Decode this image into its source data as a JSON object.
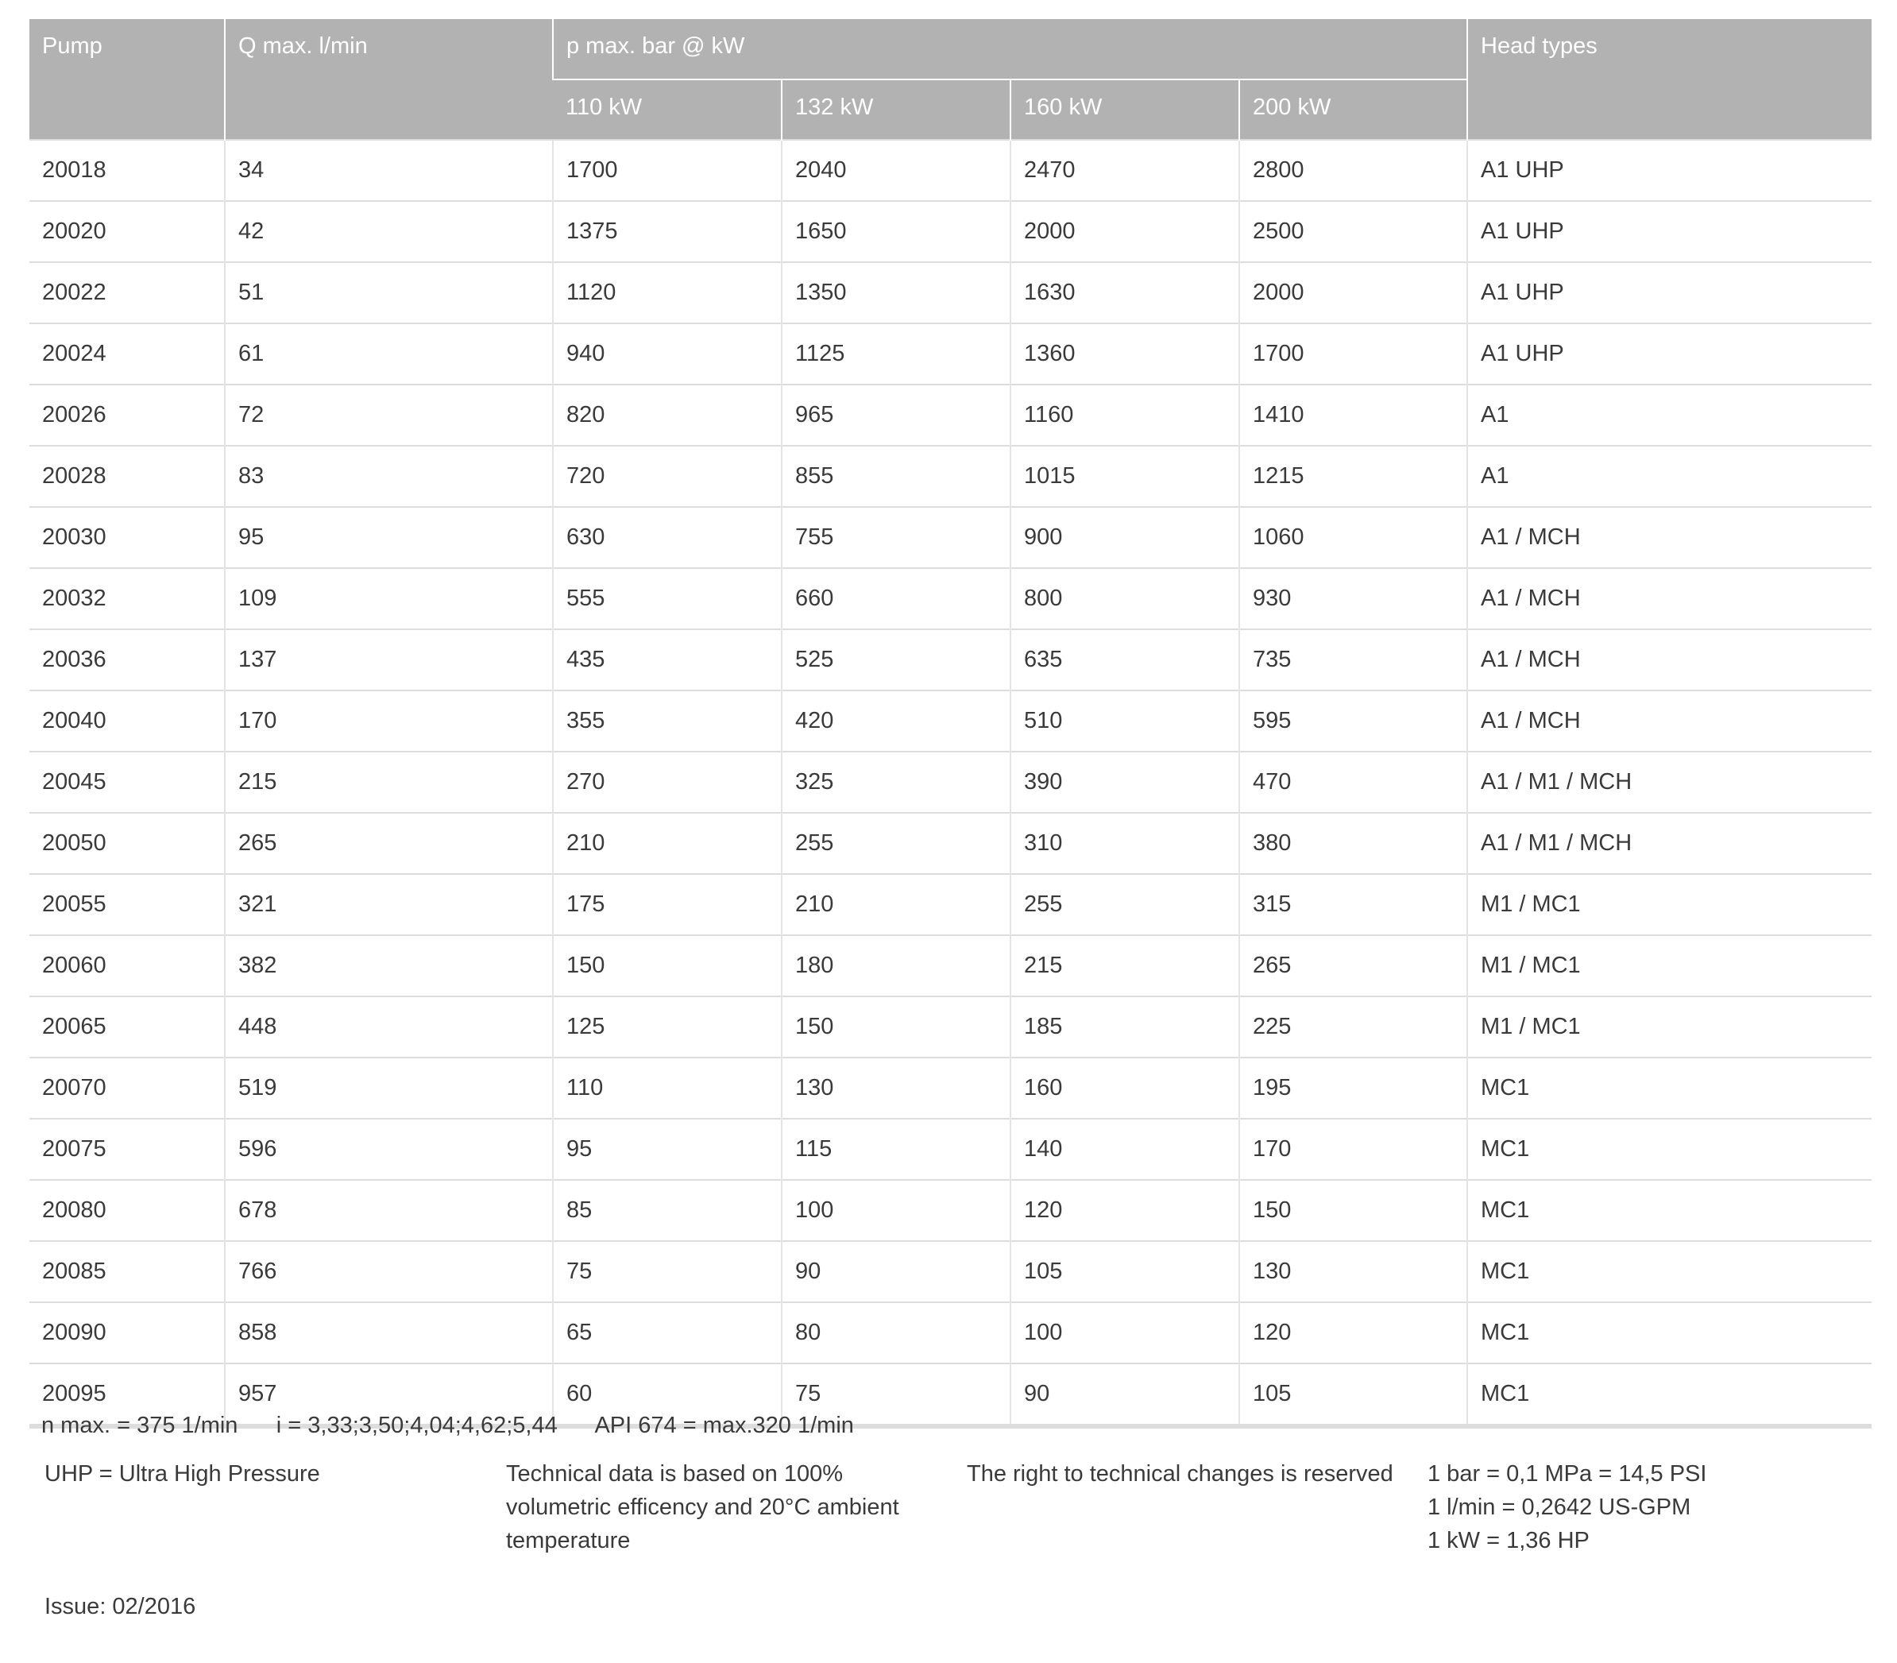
{
  "header": {
    "pump": "Pump",
    "q_max": "Q max. l/min",
    "p_max": "p max. bar @ kW",
    "head_types": "Head types",
    "power": [
      "110 kW",
      "132 kW",
      "160 kW",
      "200 kW"
    ]
  },
  "rows": [
    [
      "20018",
      "34",
      "1700",
      "2040",
      "2470",
      "2800",
      "A1 UHP"
    ],
    [
      "20020",
      "42",
      "1375",
      "1650",
      "2000",
      "2500",
      "A1 UHP"
    ],
    [
      "20022",
      "51",
      "1120",
      "1350",
      "1630",
      "2000",
      "A1 UHP"
    ],
    [
      "20024",
      "61",
      "940",
      "1125",
      "1360",
      "1700",
      "A1 UHP"
    ],
    [
      "20026",
      "72",
      "820",
      "965",
      "1160",
      "1410",
      "A1"
    ],
    [
      "20028",
      "83",
      "720",
      "855",
      "1015",
      "1215",
      "A1"
    ],
    [
      "20030",
      "95",
      "630",
      "755",
      "900",
      "1060",
      "A1 / MCH"
    ],
    [
      "20032",
      "109",
      "555",
      "660",
      "800",
      "930",
      "A1 / MCH"
    ],
    [
      "20036",
      "137",
      "435",
      "525",
      "635",
      "735",
      "A1 / MCH"
    ],
    [
      "20040",
      "170",
      "355",
      "420",
      "510",
      "595",
      "A1 / MCH"
    ],
    [
      "20045",
      "215",
      "270",
      "325",
      "390",
      "470",
      "A1 / M1 / MCH"
    ],
    [
      "20050",
      "265",
      "210",
      "255",
      "310",
      "380",
      "A1 / M1 / MCH"
    ],
    [
      "20055",
      "321",
      "175",
      "210",
      "255",
      "315",
      "M1 / MC1"
    ],
    [
      "20060",
      "382",
      "150",
      "180",
      "215",
      "265",
      "M1 / MC1"
    ],
    [
      "20065",
      "448",
      "125",
      "150",
      "185",
      "225",
      "M1 / MC1"
    ],
    [
      "20070",
      "519",
      "110",
      "130",
      "160",
      "195",
      "MC1"
    ],
    [
      "20075",
      "596",
      "95",
      "115",
      "140",
      "170",
      "MC1"
    ],
    [
      "20080",
      "678",
      "85",
      "100",
      "120",
      "150",
      "MC1"
    ],
    [
      "20085",
      "766",
      "75",
      "90",
      "105",
      "130",
      "MC1"
    ],
    [
      "20090",
      "858",
      "65",
      "80",
      "100",
      "120",
      "MC1"
    ],
    [
      "20095",
      "957",
      "60",
      "75",
      "90",
      "105",
      "MC1"
    ]
  ],
  "footer": {
    "specs": "n max. = 375 1/min      i = 3,33;3,50;4,04;4,62;5,44      API 674 = max.320 1/min",
    "uhp": "UHP = Ultra High Pressure",
    "technical": [
      "Technical data is based on 100%",
      "volumetric efficency and 20°C ambient",
      "temperature"
    ],
    "rights": "The right to technical changes is reserved",
    "conversions": [
      "1 bar = 0,1 MPa = 14,5 PSI",
      "1 l/min = 0,2642 US-GPM",
      "1 kW = 1,36 HP"
    ],
    "issue": "Issue: 02/2016"
  }
}
